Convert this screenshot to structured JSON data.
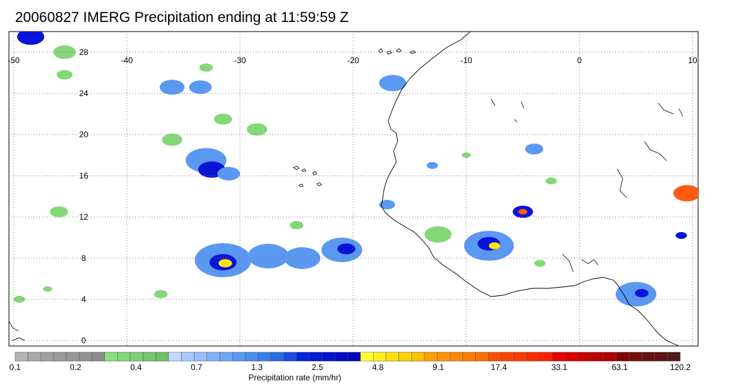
{
  "title": "20060827 IMERG Precipitation ending at 11:59:59 Z",
  "map": {
    "lon_range": [
      -50,
      10
    ],
    "lat_range": [
      -0.5,
      31.5
    ],
    "lon_ticks": [
      "-50",
      "-40",
      "-30",
      "-20",
      "-10",
      "0",
      "10"
    ],
    "lon_tick_values": [
      -50,
      -40,
      -30,
      -20,
      -10,
      0,
      10
    ],
    "lat_ticks": [
      "0",
      "4",
      "8",
      "12",
      "16",
      "20",
      "24",
      "28"
    ],
    "lat_tick_values": [
      0,
      4,
      8,
      12,
      16,
      20,
      24,
      28
    ],
    "grid": "dotted",
    "coastline_color": "#000000",
    "precip_cells": [
      {
        "lon": -48.5,
        "lat": 29.5,
        "r": 1.2,
        "level": 3
      },
      {
        "lon": -45.5,
        "lat": 28,
        "r": 1.0,
        "level": 1
      },
      {
        "lon": -45.5,
        "lat": 25.8,
        "r": 0.7,
        "level": 1
      },
      {
        "lon": -36,
        "lat": 24.6,
        "r": 1.1,
        "level": 2
      },
      {
        "lon": -33.5,
        "lat": 24.6,
        "r": 1.0,
        "level": 2
      },
      {
        "lon": -31.5,
        "lat": 21.5,
        "r": 0.8,
        "level": 1
      },
      {
        "lon": -33,
        "lat": 17.5,
        "r": 1.8,
        "level": 2
      },
      {
        "lon": -32.5,
        "lat": 16.6,
        "r": 1.2,
        "level": 3
      },
      {
        "lon": -31,
        "lat": 16.2,
        "r": 1.0,
        "level": 2
      },
      {
        "lon": -46,
        "lat": 12.5,
        "r": 0.8,
        "level": 1
      },
      {
        "lon": -31.5,
        "lat": 7.8,
        "r": 2.5,
        "level": 2
      },
      {
        "lon": -31.5,
        "lat": 7.6,
        "r": 1.2,
        "level": 3
      },
      {
        "lon": -31.3,
        "lat": 7.5,
        "r": 0.6,
        "level": 4
      },
      {
        "lon": -27.5,
        "lat": 8.2,
        "r": 1.8,
        "level": 2
      },
      {
        "lon": -24.5,
        "lat": 8.0,
        "r": 1.6,
        "level": 2
      },
      {
        "lon": -21,
        "lat": 8.8,
        "r": 1.8,
        "level": 2
      },
      {
        "lon": -20.6,
        "lat": 8.9,
        "r": 0.8,
        "level": 3
      },
      {
        "lon": -25,
        "lat": 11.2,
        "r": 0.6,
        "level": 1
      },
      {
        "lon": -16.5,
        "lat": 25,
        "r": 1.2,
        "level": 2
      },
      {
        "lon": -17,
        "lat": 13.2,
        "r": 0.7,
        "level": 2
      },
      {
        "lon": -12.5,
        "lat": 10.3,
        "r": 1.2,
        "level": 1
      },
      {
        "lon": -8,
        "lat": 9.2,
        "r": 2.2,
        "level": 2
      },
      {
        "lon": -8,
        "lat": 9.4,
        "r": 1.0,
        "level": 3
      },
      {
        "lon": -7.5,
        "lat": 9.2,
        "r": 0.5,
        "level": 4
      },
      {
        "lon": -5,
        "lat": 12.5,
        "r": 0.9,
        "level": 3
      },
      {
        "lon": -5,
        "lat": 12.5,
        "r": 0.4,
        "level": 5
      },
      {
        "lon": -4,
        "lat": 18.6,
        "r": 0.8,
        "level": 2
      },
      {
        "lon": -13,
        "lat": 17,
        "r": 0.5,
        "level": 2
      },
      {
        "lon": 5,
        "lat": 4.5,
        "r": 1.8,
        "level": 2
      },
      {
        "lon": 5.5,
        "lat": 4.6,
        "r": 0.6,
        "level": 3
      },
      {
        "lon": 9.5,
        "lat": 14.3,
        "r": 1.2,
        "level": 5
      },
      {
        "lon": 9,
        "lat": 10.2,
        "r": 0.5,
        "level": 3
      },
      {
        "lon": -49.5,
        "lat": 4.0,
        "r": 0.5,
        "level": 1
      },
      {
        "lon": -47,
        "lat": 5.0,
        "r": 0.4,
        "level": 1
      },
      {
        "lon": -37,
        "lat": 4.5,
        "r": 0.6,
        "level": 1
      },
      {
        "lon": -33,
        "lat": 26.5,
        "r": 0.6,
        "level": 1
      },
      {
        "lon": -28.5,
        "lat": 20.5,
        "r": 0.9,
        "level": 1
      },
      {
        "lon": -36,
        "lat": 19.5,
        "r": 0.9,
        "level": 1
      },
      {
        "lon": -2.5,
        "lat": 15.5,
        "r": 0.5,
        "level": 1
      },
      {
        "lon": -10,
        "lat": 18,
        "r": 0.4,
        "level": 1
      },
      {
        "lon": -3.5,
        "lat": 7.5,
        "r": 0.5,
        "level": 1
      }
    ]
  },
  "colorbar": {
    "colors": [
      "#b4b4b4",
      "#a8a8a8",
      "#a0a0a0",
      "#9a9a9a",
      "#969696",
      "#929292",
      "#8c8c8c",
      "#88e07e",
      "#80d878",
      "#7ad072",
      "#74c86c",
      "#6ec066",
      "#c4d8ff",
      "#aac8ff",
      "#96bcff",
      "#82b2fb",
      "#6ea6f6",
      "#5a98f2",
      "#4a8cee",
      "#3a7ee8",
      "#2c6ce4",
      "#1e4ae0",
      "#0022e0",
      "#0018d8",
      "#0010d0",
      "#0008c8",
      "#0000c0",
      "#ffff30",
      "#fff020",
      "#ffe010",
      "#ffd000",
      "#ffc000",
      "#ffa000",
      "#ff9400",
      "#ff8800",
      "#ff7c00",
      "#ff6e00",
      "#ff5000",
      "#ff4400",
      "#ff3800",
      "#ff2c00",
      "#ff2000",
      "#e60000",
      "#d80000",
      "#ca0000",
      "#bc0000",
      "#ae0000",
      "#800000",
      "#740c0c",
      "#681010",
      "#5e1414",
      "#541818"
    ],
    "tick_labels": [
      "0.1",
      "0.2",
      "0.4",
      "0.7",
      "1.3",
      "2.5",
      "4.8",
      "9.1",
      "17.4",
      "33.1",
      "63.1",
      "120.2"
    ],
    "title": "Precipitation rate (mm/hr)"
  }
}
